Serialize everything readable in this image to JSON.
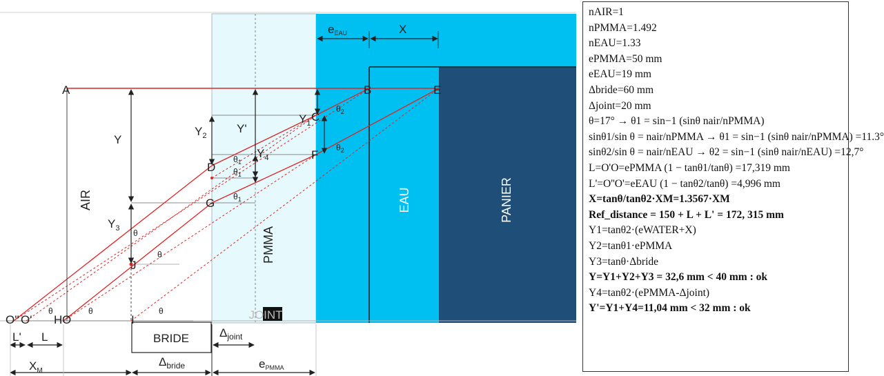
{
  "regions": {
    "air": "AIR",
    "pmma": "PMMA",
    "joint": "JOINT",
    "eau": "EAU",
    "panier": "PANIER",
    "bride": "BRIDE"
  },
  "points": {
    "A": "A",
    "B": "B",
    "C": "C",
    "D": "D",
    "E": "E",
    "F": "F",
    "G": "G",
    "I": "I",
    "J": "J",
    "O": "O",
    "Op": "O'",
    "Opp": "O''",
    "H": "H"
  },
  "dims": {
    "Y": "Y",
    "Yp": "Y'",
    "Y1": "Y",
    "Y1_sub": "1",
    "Y2": "Y",
    "Y2_sub": "2",
    "Y3": "Y",
    "Y3_sub": "3",
    "Y4": "Y",
    "Y4_sub": "4",
    "X": "X",
    "e_eau": "e",
    "e_eau_sub": "EAU",
    "e_pmma": "e",
    "e_pmma_sub": "PMMA",
    "Lp": "L'",
    "L": "L",
    "XM": "X",
    "XM_sub": "M",
    "delta_joint": "Δ",
    "delta_joint_sub": "joint",
    "delta_bride": "Δ",
    "delta_bride_sub": "bride"
  },
  "angles": {
    "theta": "θ",
    "theta1": "θ",
    "theta1_sub": "1",
    "theta2": "θ",
    "theta2_sub": "2"
  },
  "colors": {
    "pmma": "#e6fafd",
    "eau": "#00c0f2",
    "panier": "#1f4e79",
    "ray": "#e02424",
    "line": "#222222",
    "grid": "#b3b3b3"
  },
  "formulas": [
    {
      "text": "nAIR=1",
      "bold": false
    },
    {
      "text": "nPMMA=1.492",
      "bold": false
    },
    {
      "text": "nEAU=1.33",
      "bold": false
    },
    {
      "text": "ePMMA=50 mm",
      "bold": false
    },
    {
      "text": "eEAU=19 mm",
      "bold": false
    },
    {
      "text": "Δbride=60 mm",
      "bold": false
    },
    {
      "text": "Δjoint=20 mm",
      "bold": false
    },
    {
      "text": "θ=17° → θ1 = sin−1 (sinθ nair/nPMMA)",
      "bold": false
    },
    {
      "text": "sinθ1/sin θ = nair/nPMMA → θ1 = sin−1 (sinθ nair/nPMMA) =11.3°",
      "bold": false
    },
    {
      "text": "sinθ2/sin θ = nair/nEAU → θ2 = sin−1 (sinθ nair/nEAU) =12,7°",
      "bold": false
    },
    {
      "text": "L=O'O=ePMMA (1 − tanθ1/tanθ) =17,319 mm",
      "bold": false
    },
    {
      "text": "L'=O''O'=eEAU (1 − tanθ2/tanθ) =4,996 mm",
      "bold": false
    },
    {
      "text": "X=tanθ/tanθ2·XM=1.3567·XM",
      "bold": true
    },
    {
      "text": "Ref_distance = 150 + L + L' = 172, 315 mm",
      "bold": true
    },
    {
      "text": "Y1=tanθ2·(eWATER+X)",
      "bold": false
    },
    {
      "text": "Y2=tanθ1·ePMMA",
      "bold": false
    },
    {
      "text": "Y3=tanθ·Δbride",
      "bold": false
    },
    {
      "text": "Y=Y1+Y2+Y3 = 32,6 mm < 40 mm : ok",
      "bold": true
    },
    {
      "text": "Y4=tanθ2·(ePMMA-Δjoint)",
      "bold": false
    },
    {
      "text": "Y'=Y1+Y4=11,04 mm < 32 mm : ok",
      "bold": true
    }
  ]
}
